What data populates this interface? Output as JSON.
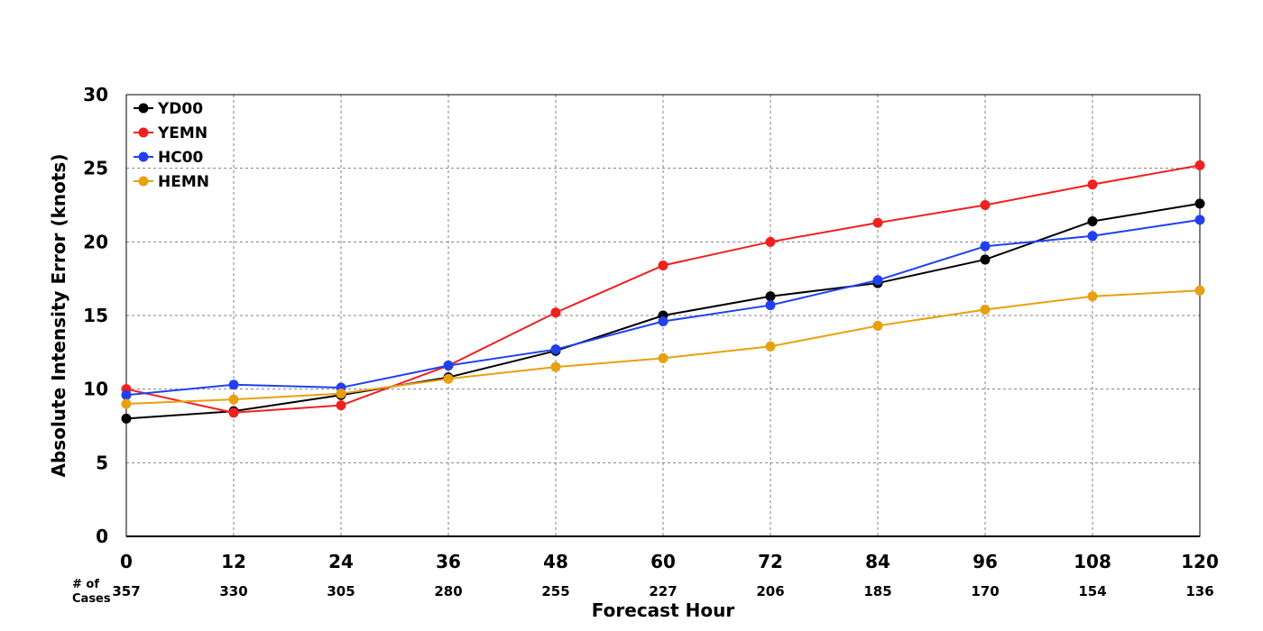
{
  "chart_data": {
    "type": "line",
    "title": "",
    "xlabel": "Forecast Hour",
    "ylabel": "Absolute Intensity Error (knots)",
    "x": [
      0,
      12,
      24,
      36,
      48,
      60,
      72,
      84,
      96,
      108,
      120
    ],
    "xlim": [
      0,
      120
    ],
    "ylim": [
      0,
      30
    ],
    "yticks": [
      0,
      5,
      10,
      15,
      20,
      25,
      30
    ],
    "grid": true,
    "legend_position": "top-left",
    "cases_label": [
      "# of",
      "Cases"
    ],
    "cases": [
      357,
      330,
      305,
      280,
      255,
      227,
      206,
      185,
      170,
      154,
      136
    ],
    "series": [
      {
        "name": "YD00",
        "color": "#000000",
        "values": [
          8.0,
          8.5,
          9.6,
          10.8,
          12.6,
          15.0,
          16.3,
          17.2,
          18.8,
          21.4,
          22.6
        ]
      },
      {
        "name": "YEMN",
        "color": "#f02020",
        "values": [
          10.0,
          8.4,
          8.9,
          11.6,
          15.2,
          18.4,
          20.0,
          21.3,
          22.5,
          23.9,
          25.2
        ]
      },
      {
        "name": "HC00",
        "color": "#2040f0",
        "values": [
          9.6,
          10.3,
          10.1,
          11.6,
          12.7,
          14.6,
          15.7,
          17.4,
          19.7,
          20.4,
          21.5
        ]
      },
      {
        "name": "HEMN",
        "color": "#e8a010",
        "values": [
          9.0,
          9.3,
          9.7,
          10.7,
          11.5,
          12.1,
          12.9,
          14.3,
          15.4,
          16.3,
          16.7
        ]
      }
    ]
  }
}
